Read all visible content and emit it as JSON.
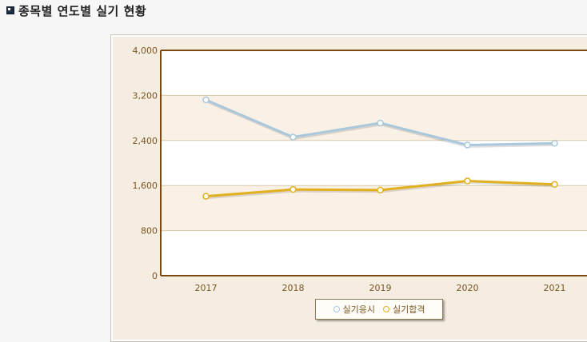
{
  "page": {
    "title": "종목별 연도별 실기 현황"
  },
  "icons": {
    "title_bullet": "square-bullet-icon"
  },
  "chart_data": {
    "type": "line",
    "categories": [
      "2017",
      "2018",
      "2019",
      "2020",
      "2021"
    ],
    "series": [
      {
        "name": "실기응시",
        "values": [
          3120,
          2460,
          2710,
          2320,
          2350
        ],
        "color": "#a9c8dc"
      },
      {
        "name": "실기합격",
        "values": [
          1410,
          1530,
          1520,
          1680,
          1620
        ],
        "color": "#e2b01f"
      }
    ],
    "ylim": [
      0,
      4000
    ],
    "yticks": [
      "0",
      "800",
      "1,600",
      "2,400",
      "3,200",
      "4,000"
    ],
    "ytick_values": [
      0,
      800,
      1600,
      2400,
      3200,
      4000
    ],
    "grid": true,
    "legend_position": "bottom-center",
    "colors": {
      "plot_border": "#7a4a10",
      "grid": "#d8c8a8",
      "band": "#f9f0e6",
      "tick_text": "#7a5520"
    }
  }
}
